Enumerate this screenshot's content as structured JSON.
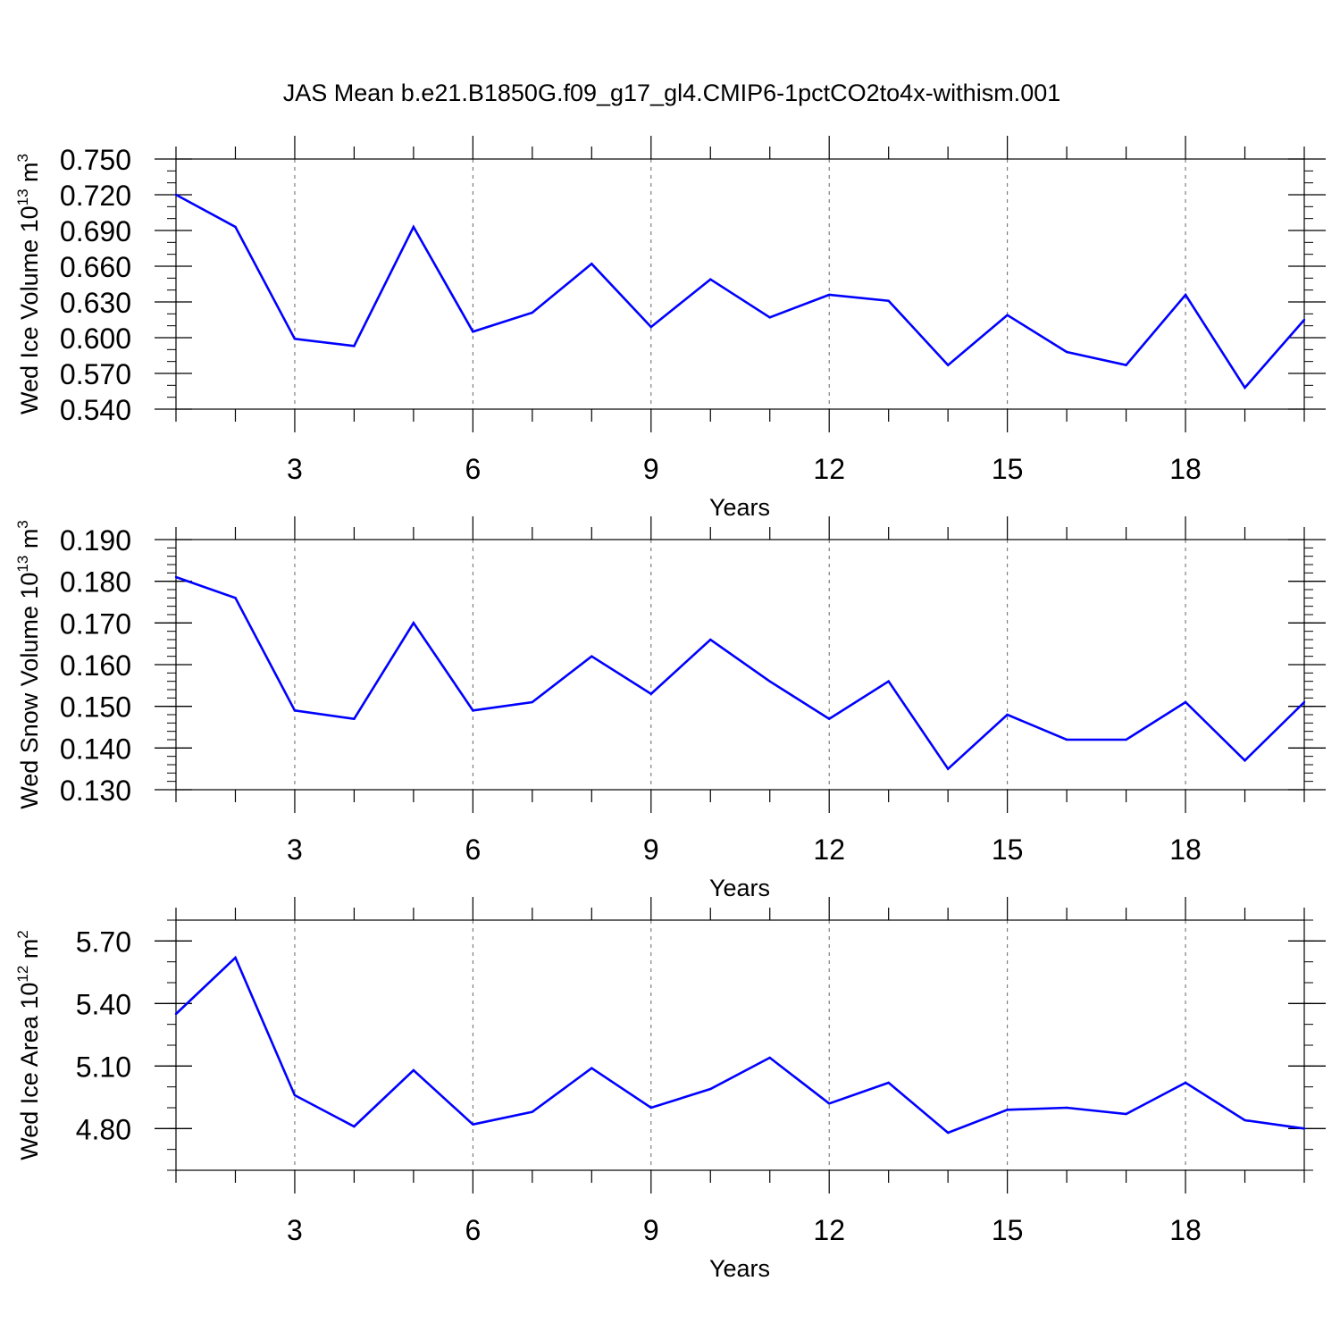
{
  "figure": {
    "title": "JAS Mean b.e21.B1850G.f09_g17_gl4.CMIP6-1pctCO2to4x-withism.001"
  },
  "line_color": "#0000ff",
  "chart_data": [
    {
      "type": "line",
      "ylabel": {
        "text": "Wed Ice Volume 10",
        "sup1": "13",
        "mid": " m",
        "sup2": "3"
      },
      "xlabel": "Years",
      "xlim": [
        1,
        20
      ],
      "ylim": [
        0.54,
        0.75
      ],
      "x_ticks": [
        3,
        6,
        9,
        12,
        15,
        18
      ],
      "y_ticks": [
        0.54,
        0.57,
        0.6,
        0.63,
        0.66,
        0.69,
        0.72,
        0.75
      ],
      "y_tick_labels": [
        "0.540",
        "0.570",
        "0.600",
        "0.630",
        "0.660",
        "0.690",
        "0.720",
        "0.750"
      ],
      "y_minor_step": 0.01,
      "grid": "vertical-dashed",
      "x": [
        1,
        2,
        3,
        4,
        5,
        6,
        7,
        8,
        9,
        10,
        11,
        12,
        13,
        14,
        15,
        16,
        17,
        18,
        19,
        20
      ],
      "y": [
        0.72,
        0.693,
        0.599,
        0.593,
        0.693,
        0.605,
        0.621,
        0.662,
        0.609,
        0.649,
        0.617,
        0.636,
        0.631,
        0.577,
        0.619,
        0.588,
        0.577,
        0.636,
        0.558,
        0.615
      ]
    },
    {
      "type": "line",
      "ylabel": {
        "text": "Wed Snow Volume 10",
        "sup1": "13",
        "mid": " m",
        "sup2": "3"
      },
      "xlabel": "Years",
      "xlim": [
        1,
        20
      ],
      "ylim": [
        0.13,
        0.19
      ],
      "x_ticks": [
        3,
        6,
        9,
        12,
        15,
        18
      ],
      "y_ticks": [
        0.13,
        0.14,
        0.15,
        0.16,
        0.17,
        0.18,
        0.19
      ],
      "y_tick_labels": [
        "0.130",
        "0.140",
        "0.150",
        "0.160",
        "0.170",
        "0.180",
        "0.190"
      ],
      "y_minor_step": 0.002,
      "grid": "vertical-dashed",
      "x": [
        1,
        2,
        3,
        4,
        5,
        6,
        7,
        8,
        9,
        10,
        11,
        12,
        13,
        14,
        15,
        16,
        17,
        18,
        19,
        20
      ],
      "y": [
        0.181,
        0.176,
        0.149,
        0.147,
        0.17,
        0.149,
        0.151,
        0.162,
        0.153,
        0.166,
        0.156,
        0.147,
        0.156,
        0.135,
        0.148,
        0.142,
        0.142,
        0.151,
        0.137,
        0.151
      ]
    },
    {
      "type": "line",
      "ylabel": {
        "text": "Wed Ice Area 10",
        "sup1": "12",
        "mid": " m",
        "sup2": "2"
      },
      "xlabel": "Years",
      "xlim": [
        1,
        20
      ],
      "ylim": [
        4.6,
        5.8
      ],
      "x_ticks": [
        3,
        6,
        9,
        12,
        15,
        18
      ],
      "y_ticks": [
        4.8,
        5.1,
        5.4,
        5.7
      ],
      "y_tick_labels": [
        "4.80",
        "5.10",
        "5.40",
        "5.70"
      ],
      "y_minor_step": 0.1,
      "grid": "vertical-dashed",
      "x": [
        1,
        2,
        3,
        4,
        5,
        6,
        7,
        8,
        9,
        10,
        11,
        12,
        13,
        14,
        15,
        16,
        17,
        18,
        19,
        20
      ],
      "y": [
        5.35,
        5.62,
        4.96,
        4.81,
        5.08,
        4.82,
        4.88,
        5.09,
        4.9,
        4.99,
        5.14,
        4.92,
        5.02,
        4.78,
        4.89,
        4.9,
        4.87,
        5.02,
        4.84,
        4.8
      ]
    }
  ]
}
